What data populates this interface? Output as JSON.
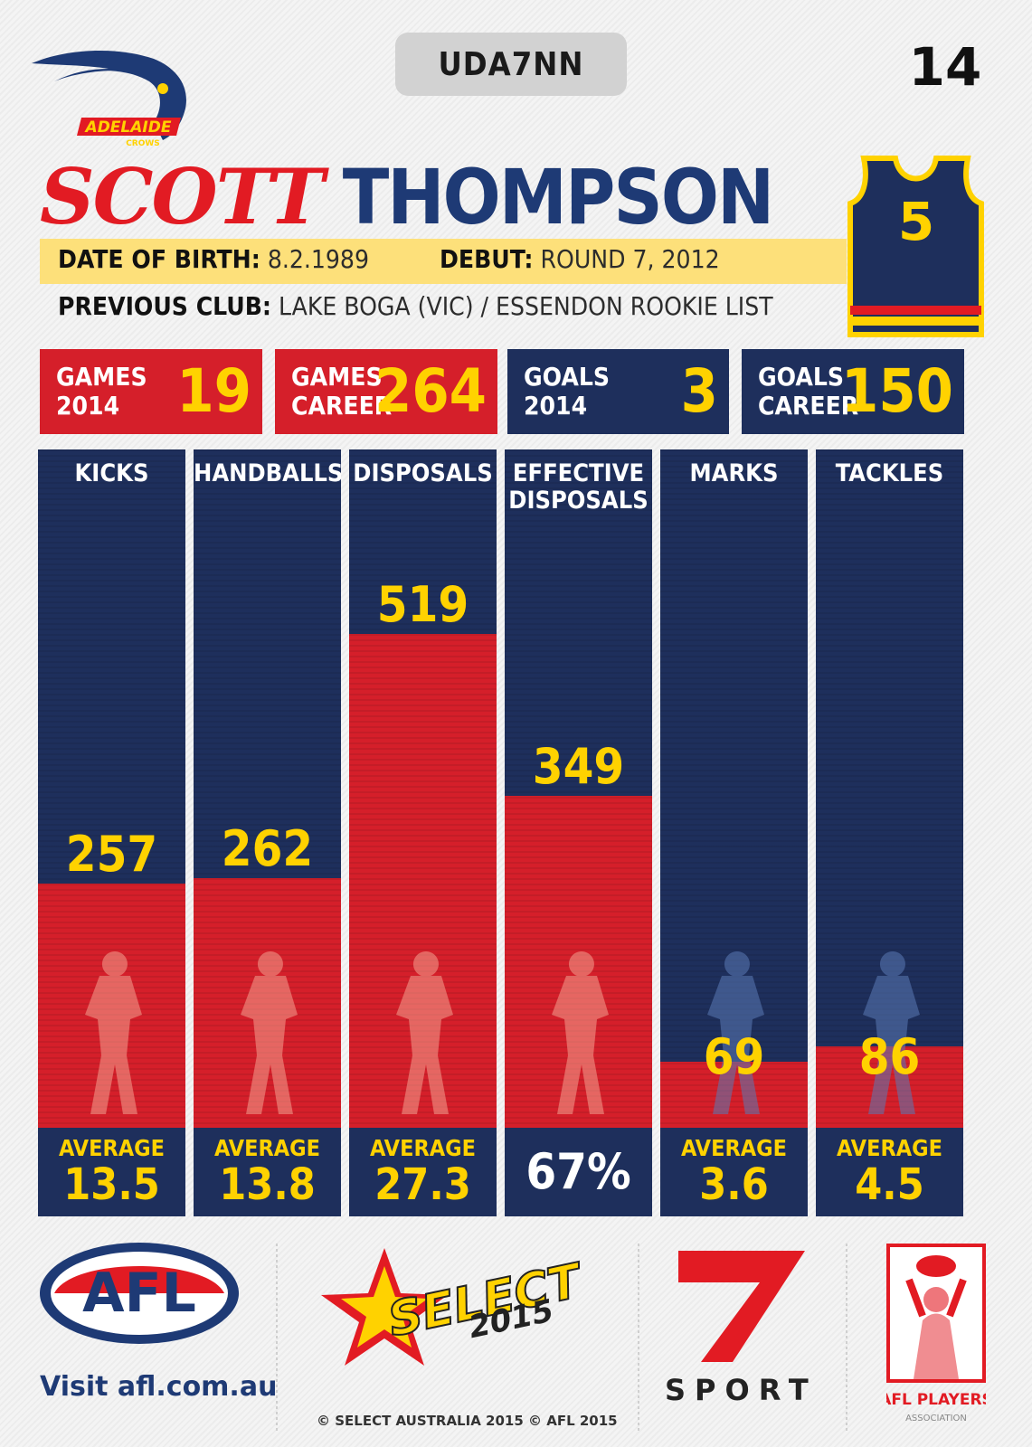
{
  "card": {
    "code": "UDA7NN",
    "number": "14",
    "first_name": "SCOTT",
    "last_name": "THOMPSON",
    "dob_label": "DATE OF BIRTH:",
    "dob_value": "8.2.1989",
    "debut_label": "DEBUT:",
    "debut_value": "ROUND 7, 2012",
    "prev_club_label": "PREVIOUS CLUB:",
    "prev_club_value": "LAKE BOGA (VIC) / ESSENDON ROOKIE LIST",
    "jersey_number": "5",
    "club_logo_text": "ADELAIDE",
    "club_logo_sub": "CROWS"
  },
  "summary": [
    {
      "label": "GAMES\n2014",
      "value": "19",
      "bg": "#d51f2a"
    },
    {
      "label": "GAMES\nCAREER",
      "value": "264",
      "bg": "#d51f2a"
    },
    {
      "label": "GOALS\n2014",
      "value": "3",
      "bg": "#1e2f5c"
    },
    {
      "label": "GOALS\nCAREER",
      "value": "150",
      "bg": "#1e2f5c"
    }
  ],
  "chart_data": {
    "type": "bar",
    "categories": [
      "KICKS",
      "HANDBALLS",
      "DISPOSALS",
      "EFFECTIVE\nDISPOSALS",
      "MARKS",
      "TACKLES"
    ],
    "values": [
      257,
      262,
      519,
      349,
      69,
      86
    ],
    "footers": [
      {
        "label": "AVERAGE",
        "value": "13.5"
      },
      {
        "label": "AVERAGE",
        "value": "13.8"
      },
      {
        "label": "AVERAGE",
        "value": "27.3"
      },
      {
        "label": "",
        "value": "67%"
      },
      {
        "label": "AVERAGE",
        "value": "3.6"
      },
      {
        "label": "AVERAGE",
        "value": "4.5"
      }
    ],
    "colors": {
      "bar": "#d51f2a",
      "background": "#1e2f5c",
      "value_text": "#ffd200"
    }
  },
  "footer": {
    "afl_logo_text": "AFL",
    "visit_prefix": "Visit ",
    "visit_url": "afl.com.au",
    "select_logo_text": "SELECT",
    "select_year": "2015",
    "copyright": "© SELECT AUSTRALIA 2015  © AFL 2015",
    "seven_logo_text": "7",
    "sport_text": "SPORT",
    "players_assoc_text": "AFL PLAYERS",
    "players_assoc_sub": "ASSOCIATION"
  }
}
